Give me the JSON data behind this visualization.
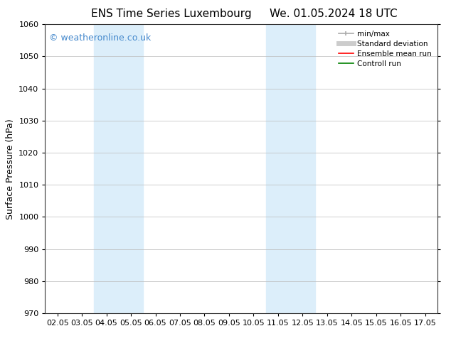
{
  "title_left": "ENS Time Series Luxembourg",
  "title_right": "We. 01.05.2024 18 UTC",
  "ylabel": "Surface Pressure (hPa)",
  "xlabel": "",
  "ylim": [
    970,
    1060
  ],
  "yticks": [
    970,
    980,
    990,
    1000,
    1010,
    1020,
    1030,
    1040,
    1050,
    1060
  ],
  "xtick_labels": [
    "02.05",
    "03.05",
    "04.05",
    "05.05",
    "06.05",
    "07.05",
    "08.05",
    "09.05",
    "10.05",
    "11.05",
    "12.05",
    "13.05",
    "14.05",
    "15.05",
    "16.05",
    "17.05"
  ],
  "xtick_positions": [
    0,
    1,
    2,
    3,
    4,
    5,
    6,
    7,
    8,
    9,
    10,
    11,
    12,
    13,
    14,
    15
  ],
  "shaded_regions": [
    {
      "x_start": 2,
      "x_end": 4,
      "color": "#dceefa"
    },
    {
      "x_start": 9,
      "x_end": 11,
      "color": "#dceefa"
    }
  ],
  "watermark_text": "© weatheronline.co.uk",
  "watermark_color": "#4488cc",
  "watermark_fontsize": 9,
  "background_color": "#ffffff",
  "legend_items": [
    {
      "label": "min/max",
      "color": "#aaaaaa",
      "lw": 1.2,
      "style": "solid"
    },
    {
      "label": "Standard deviation",
      "color": "#cccccc",
      "lw": 5,
      "style": "solid"
    },
    {
      "label": "Ensemble mean run",
      "color": "#ff0000",
      "lw": 1.2,
      "style": "solid"
    },
    {
      "label": "Controll run",
      "color": "#008000",
      "lw": 1.2,
      "style": "solid"
    }
  ],
  "grid_color": "#bbbbbb",
  "grid_linewidth": 0.5,
  "spine_color": "#333333",
  "title_fontsize": 11,
  "tick_fontsize": 8,
  "ylabel_fontsize": 9,
  "legend_fontsize": 7.5
}
